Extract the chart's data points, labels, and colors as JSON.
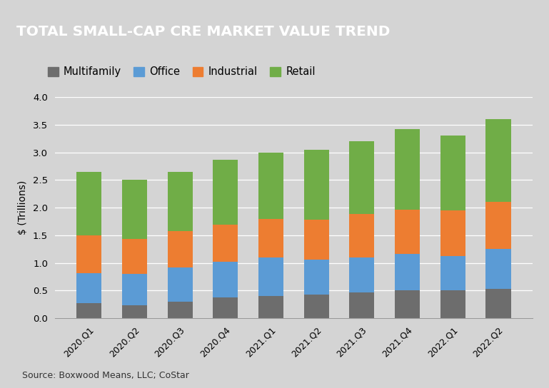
{
  "title": "TOTAL SMALL-CAP CRE MARKET VALUE TREND",
  "title_bg_color": "#555555",
  "title_text_color": "#ffffff",
  "bg_color": "#d4d4d4",
  "plot_bg_color": "#d4d4d4",
  "categories": [
    "2020.Q1",
    "2020.Q2",
    "2020.Q3",
    "2020.Q4",
    "2021.Q1",
    "2021.Q2",
    "2021.Q3",
    "2021.Q4",
    "2022.Q1",
    "2022.Q2"
  ],
  "multifamily": [
    0.27,
    0.23,
    0.3,
    0.38,
    0.4,
    0.43,
    0.47,
    0.5,
    0.5,
    0.53
  ],
  "office": [
    0.55,
    0.57,
    0.62,
    0.64,
    0.7,
    0.63,
    0.63,
    0.66,
    0.62,
    0.72
  ],
  "industrial": [
    0.68,
    0.63,
    0.65,
    0.67,
    0.7,
    0.72,
    0.78,
    0.8,
    0.83,
    0.85
  ],
  "retail": [
    1.15,
    1.07,
    1.08,
    1.18,
    1.2,
    1.27,
    1.32,
    1.46,
    1.35,
    1.5
  ],
  "series_colors": {
    "multifamily": "#6d6d6d",
    "office": "#5b9bd5",
    "industrial": "#ed7d31",
    "retail": "#70ad47"
  },
  "ylabel": "$ (Trillions)",
  "ylim": [
    0,
    4.0
  ],
  "yticks": [
    0.0,
    0.5,
    1.0,
    1.5,
    2.0,
    2.5,
    3.0,
    3.5,
    4.0
  ],
  "source_text": "Source: Boxwood Means, LLC; CoStar",
  "legend_labels": [
    "Multifamily",
    "Office",
    "Industrial",
    "Retail"
  ],
  "bar_width": 0.55
}
